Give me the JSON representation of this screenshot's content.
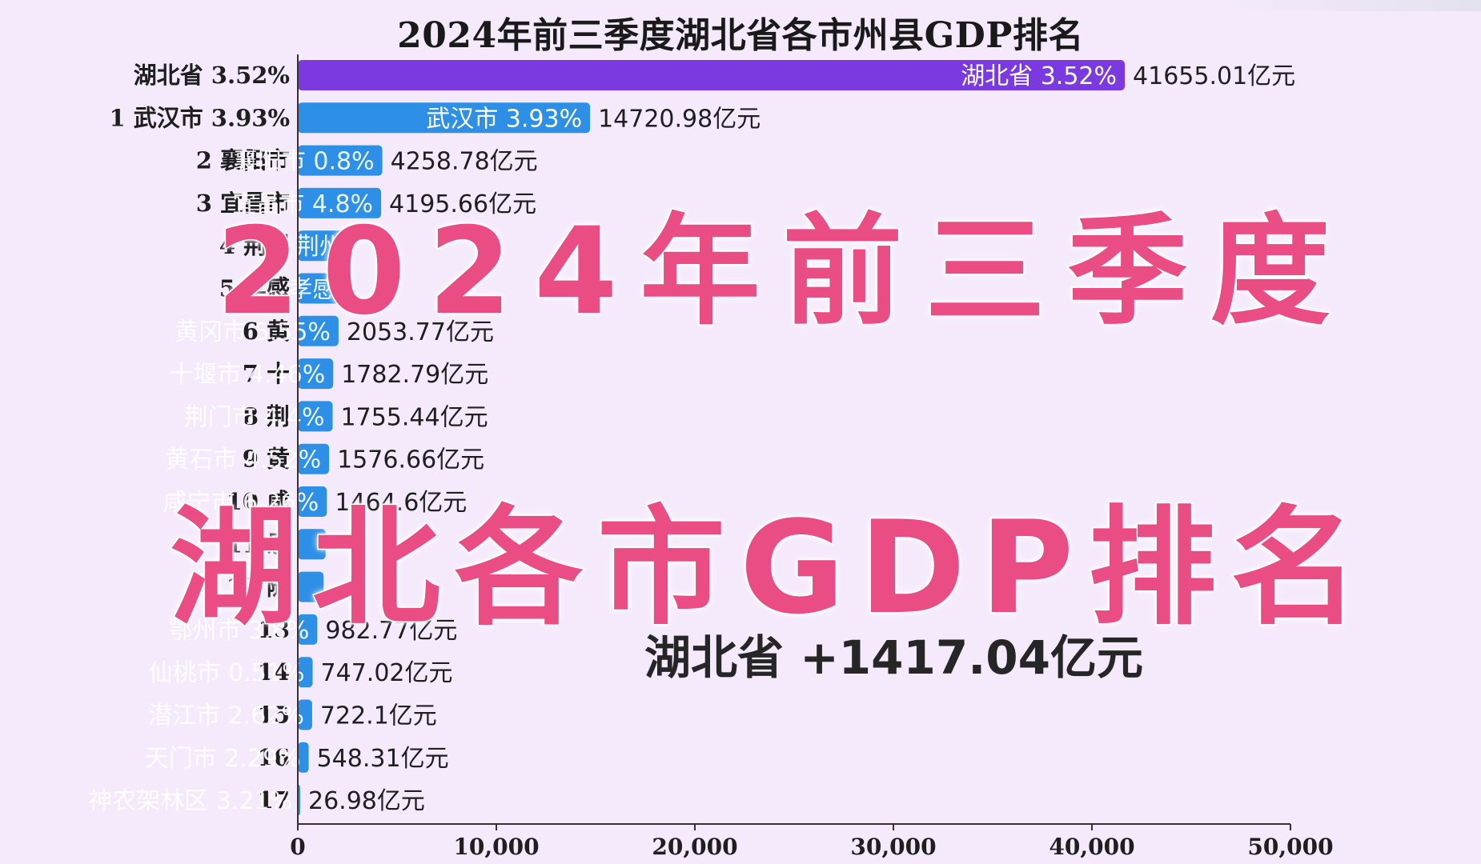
{
  "chart_data": {
    "type": "bar",
    "orientation": "horizontal",
    "title": "2024年前三季度湖北省各市州县GDP排名",
    "categories": [
      "湖北省 3.52%",
      "1 武汉市 3.93%",
      "2 襄阳市",
      "3 宜昌市",
      "4 荆州",
      "5 孝感",
      "6 黄",
      "7 十",
      "8 荆",
      "9 黄",
      "10 咸",
      "11 恩",
      "12 随",
      "13",
      "14",
      "15",
      "16",
      "17"
    ],
    "bar_labels": [
      "湖北省 3.52%",
      "武汉市 3.93%",
      "襄阳市 0.8%",
      "宜昌市 4.8%",
      "荆州",
      "孝感",
      "黄冈市 5.55%",
      "十堰市 4.46%",
      "荆门市 4.4%",
      "黄石市 4.52%",
      "咸宁市 6.26%",
      "",
      "",
      "鄂州市 3.8%",
      "仙桃市 0.51%",
      "潜江市 2.62%",
      "天门市 2.29%",
      "神农架林区 3.21%"
    ],
    "values": [
      41655.01,
      14720.98,
      4258.78,
      4195.66,
      2700,
      2350,
      2053.77,
      1782.79,
      1755.44,
      1576.66,
      1464.6,
      1400,
      1300,
      982.77,
      747.02,
      722.1,
      548.31,
      26.98
    ],
    "value_labels": [
      "41655.01亿元",
      "14720.98亿元",
      "4258.78亿元",
      "4195.66亿元",
      "",
      "",
      "2053.77亿元",
      "1782.79亿元",
      "1755.44亿元",
      "1576.66亿元",
      "1464.6亿元",
      "",
      "",
      "982.77亿元",
      "747.02亿元",
      "722.1亿元",
      "548.31亿元",
      "26.98亿元"
    ],
    "xlim": [
      0,
      50000
    ],
    "xticks": [
      0,
      10000,
      20000,
      30000,
      40000,
      50000
    ],
    "xtick_labels": [
      "0",
      "10,000",
      "20,000",
      "30,000",
      "40,000",
      "50,000"
    ],
    "colors": {
      "province": "#7a3ae0",
      "city": "#2e8fe6",
      "background": "#f4eafb"
    },
    "grid": false,
    "legend": "none"
  },
  "overlay": {
    "line1": "2024年前三季度",
    "line2": "湖北各市GDP排名",
    "color": "#ea4c84"
  },
  "ticker": {
    "text": "湖北省 +1417.04亿元"
  }
}
